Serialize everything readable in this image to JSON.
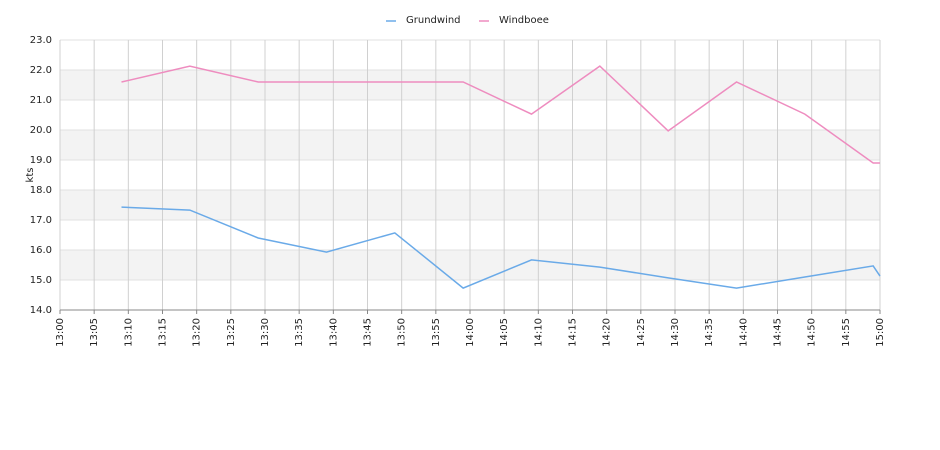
{
  "chart_data": {
    "type": "line",
    "y_label": "kts",
    "xlim": [
      "13:00",
      "15:00"
    ],
    "xticks": [
      "13:00",
      "13:05",
      "13:10",
      "13:15",
      "13:20",
      "13:25",
      "13:30",
      "13:35",
      "13:40",
      "13:45",
      "13:50",
      "13:55",
      "14:00",
      "14:05",
      "14:10",
      "14:15",
      "14:20",
      "14:25",
      "14:30",
      "14:35",
      "14:40",
      "14:45",
      "14:50",
      "14:55",
      "15:00"
    ],
    "ylim": [
      14,
      23
    ],
    "yticks": [
      {
        "value": 14,
        "label": "14.0"
      },
      {
        "value": 15,
        "label": "15.0"
      },
      {
        "value": 16,
        "label": "16.0"
      },
      {
        "value": 17,
        "label": "17.0"
      },
      {
        "value": 18,
        "label": "18.0"
      },
      {
        "value": 19,
        "label": "19.0"
      },
      {
        "value": 20,
        "label": "20.0"
      },
      {
        "value": 21,
        "label": "21.0"
      },
      {
        "value": 22,
        "label": "22.0"
      },
      {
        "value": 23,
        "label": "23.0"
      }
    ],
    "grid": true,
    "legend": "top",
    "x": [
      "13:09",
      "13:19",
      "13:29",
      "13:39",
      "13:49",
      "13:59",
      "14:09",
      "14:19",
      "14:29",
      "14:39",
      "14:49",
      "14:59",
      "15:00"
    ],
    "series": [
      {
        "name": "Grundwind",
        "color": "#6aaae8",
        "values": [
          17.43,
          17.33,
          16.4,
          15.93,
          16.57,
          14.73,
          15.67,
          15.43,
          15.07,
          14.73,
          15.1,
          15.47,
          15.13
        ]
      },
      {
        "name": "Windboee",
        "color": "#ee8cbf",
        "values": [
          21.6,
          22.13,
          21.6,
          21.6,
          21.6,
          21.6,
          20.53,
          22.13,
          19.97,
          21.6,
          20.53,
          18.9,
          18.9
        ]
      }
    ]
  }
}
